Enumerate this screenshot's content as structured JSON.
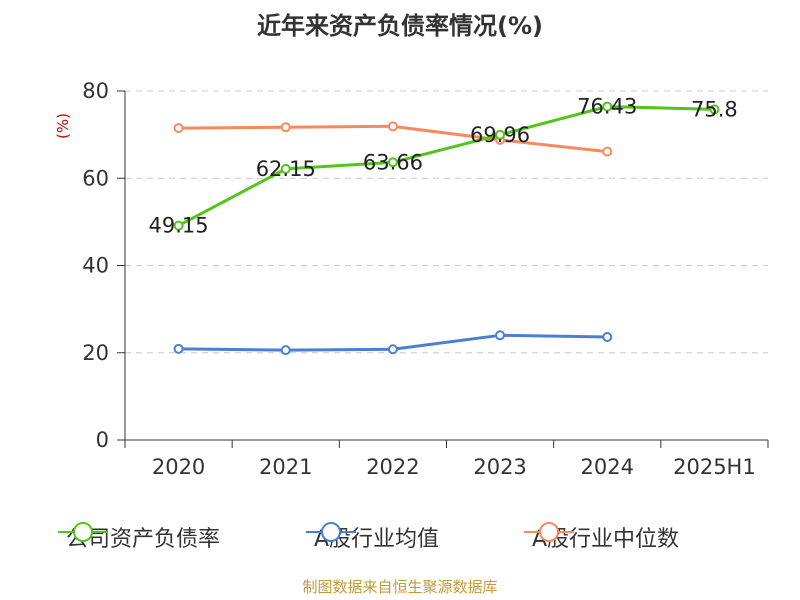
{
  "title": "近年来资产负债率情况(%)",
  "source": "制图数据来自恒生聚源数据库",
  "chart_data": {
    "type": "line",
    "categories": [
      "2020",
      "2021",
      "2022",
      "2023",
      "2024",
      "2025H1"
    ],
    "ylabel": "(%)",
    "ylim": [
      0,
      80
    ],
    "yticks": [
      0,
      20,
      40,
      60,
      80
    ],
    "grid": true,
    "legend_position": "bottom",
    "series": [
      {
        "name": "公司资产负债率",
        "color": "#52c41a",
        "values": [
          49.15,
          62.15,
          63.66,
          69.96,
          76.43,
          75.8
        ],
        "labels": [
          "49.15",
          "62.15",
          "63.66",
          "69.96",
          "76.43",
          "75.8"
        ]
      },
      {
        "name": "A股行业均值",
        "color": "#4a7fd6",
        "values": [
          20.9,
          20.6,
          20.8,
          24.0,
          23.6,
          null
        ]
      },
      {
        "name": "A股行业中位数",
        "color": "#f58a5c",
        "values": [
          71.5,
          71.7,
          71.9,
          68.8,
          66.1,
          null
        ]
      }
    ]
  }
}
